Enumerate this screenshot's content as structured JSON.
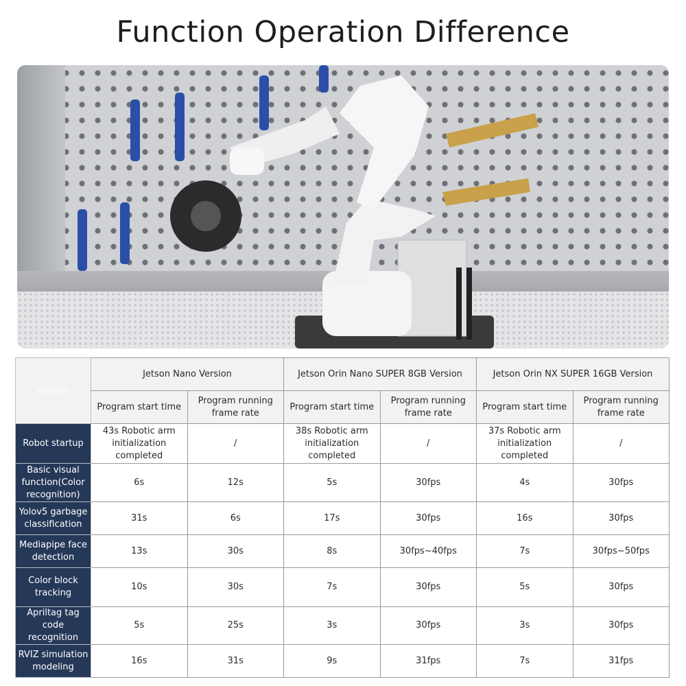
{
  "title": "Function Operation Difference",
  "colors": {
    "row_header_bg": "#253858",
    "header_bg": "#f2f2f2"
  },
  "table": {
    "corner": "Version",
    "versions": [
      "Jetson Nano Version",
      "Jetson Orin Nano SUPER 8GB Version",
      "Jetson Orin NX SUPER 16GB Version"
    ],
    "subheaders": [
      "Program start time",
      "Program running frame rate"
    ],
    "rows": [
      {
        "label": "Robot startup",
        "cells": [
          "43s Robotic arm initialization completed",
          "/",
          "38s Robotic arm initialization completed",
          "/",
          "37s Robotic arm initialization completed",
          "/"
        ]
      },
      {
        "label": "Basic visual function(Color recognition)",
        "cells": [
          "6s",
          "12s",
          "5s",
          "30fps",
          "4s",
          "30fps"
        ]
      },
      {
        "label": "Yolov5 garbage classification",
        "cells": [
          "31s",
          "6s",
          "17s",
          "30fps",
          "16s",
          "30fps"
        ]
      },
      {
        "label": "Mediapipe face detection",
        "cells": [
          "13s",
          "30s",
          "8s",
          "30fps~40fps",
          "7s",
          "30fps~50fps"
        ]
      },
      {
        "label": "Color block tracking",
        "cells": [
          "10s",
          "30s",
          "7s",
          "30fps",
          "5s",
          "30fps"
        ]
      },
      {
        "label": "Apriltag tag code recognition",
        "cells": [
          "5s",
          "25s",
          "3s",
          "30fps",
          "3s",
          "30fps"
        ]
      },
      {
        "label": "RVIZ simulation modeling",
        "cells": [
          "16s",
          "31s",
          "9s",
          "31fps",
          "7s",
          "31fps"
        ]
      }
    ]
  }
}
